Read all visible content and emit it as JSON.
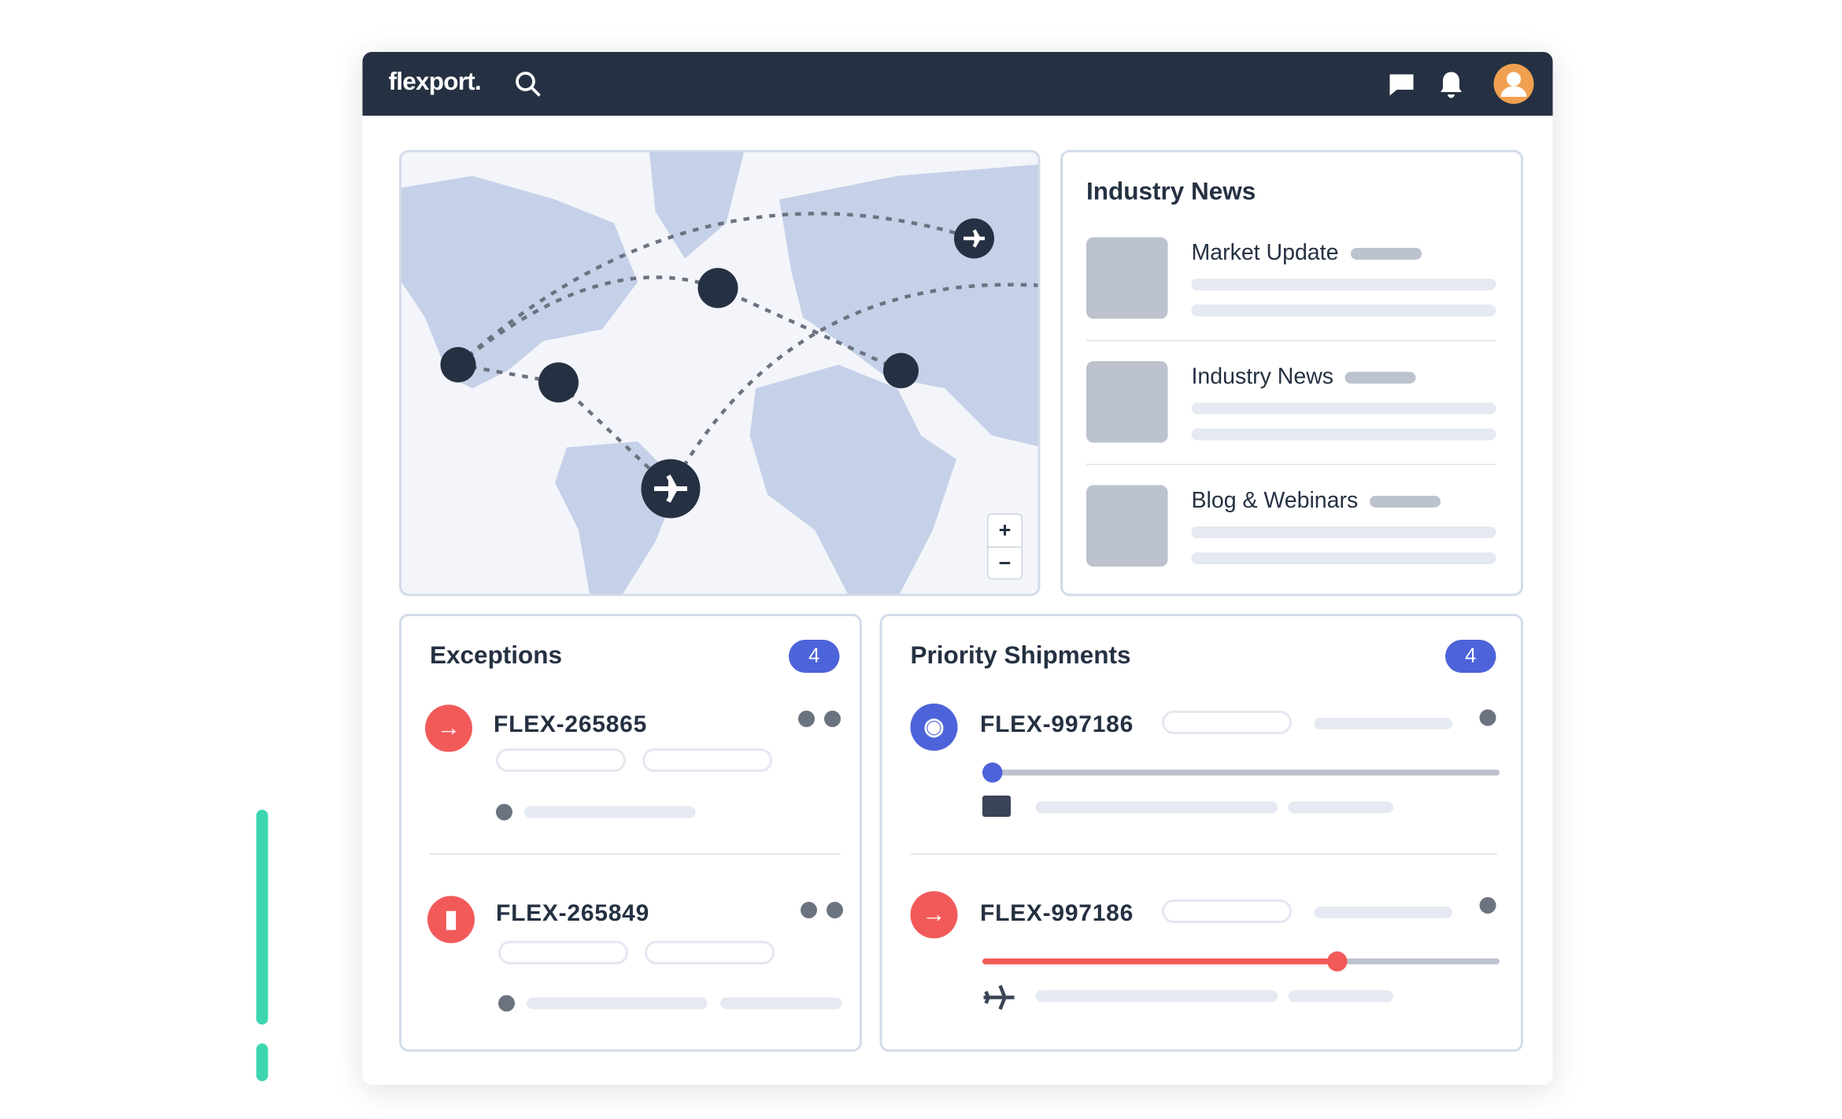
{
  "header": {
    "logo": "flexport."
  },
  "map": {
    "zoom_in": "+",
    "zoom_out": "−"
  },
  "news": {
    "title": "Industry News",
    "items": [
      "Market Update",
      "Industry News",
      "Blog & Webinars"
    ]
  },
  "exceptions": {
    "title": "Exceptions",
    "count": 4,
    "items": [
      "FLEX-265865",
      "FLEX-265849"
    ]
  },
  "priority": {
    "title": "Priority Shipments",
    "count": 4,
    "items": [
      "FLEX-997186",
      "FLEX-997186"
    ]
  }
}
